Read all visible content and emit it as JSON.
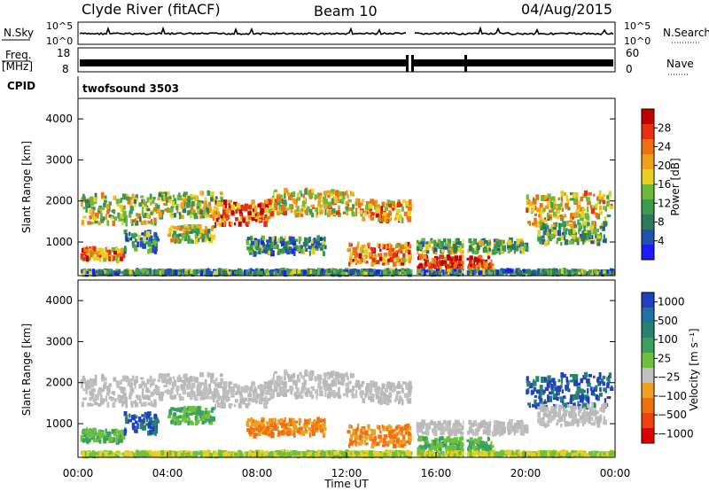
{
  "header": {
    "station": "Clyde River (fitACF)",
    "beam": "Beam 10",
    "date": "04/Aug/2015"
  },
  "strip": {
    "nsky_label": "N.Sky",
    "nsky_ticks": [
      "10^5",
      "10^0"
    ],
    "nsearch_label": "N.Search",
    "nsearch_ticks": [
      "10^5",
      "10^0"
    ],
    "freq_label_1": "Freq.",
    "freq_label_2": "[MHz]",
    "freq_ticks": [
      "18",
      "8"
    ],
    "nave_label": "Nave",
    "nave_ticks": [
      "60",
      "0"
    ],
    "cpid_label": "CPID",
    "cpid_value": "twofsound 3503"
  },
  "chart_data": [
    {
      "type": "heatmap",
      "id": "power",
      "ylabel": "Slant Range [km]",
      "yticks": [
        1000,
        2000,
        3000,
        4000
      ],
      "ylim": [
        180,
        4500
      ],
      "xlim": [
        "00:00",
        "24:00"
      ],
      "colorbar_label": "Power [dB]",
      "colorbar_ticks": [
        "4",
        "8",
        "12",
        "16",
        "20",
        "24",
        "28"
      ],
      "colors": [
        "#1a1aff",
        "#2050b0",
        "#2c7a5a",
        "#3a9a50",
        "#70b838",
        "#e8d020",
        "#f0a018",
        "#f07010",
        "#e83010",
        "#c00000"
      ]
    },
    {
      "type": "heatmap",
      "id": "velocity",
      "ylabel": "Slant Range [km]",
      "yticks": [
        1000,
        2000,
        3000,
        4000
      ],
      "ylim": [
        180,
        4500
      ],
      "xlim": [
        "00:00",
        "24:00"
      ],
      "xlabel": "Time UT",
      "xticks": [
        "00:00",
        "04:00",
        "08:00",
        "12:00",
        "16:00",
        "20:00",
        "00:00"
      ],
      "colorbar_label": "Velocity [m s⁻¹]",
      "colorbar_ticks": [
        "1000",
        "500",
        "100",
        "25",
        "−25",
        "−100",
        "−500",
        "−1000"
      ],
      "colors": [
        "#2040c0",
        "#2070a0",
        "#2a8070",
        "#38a060",
        "#70c040",
        "#c0c0c0",
        "#f0a020",
        "#f07010",
        "#f04010",
        "#e00000"
      ]
    }
  ]
}
